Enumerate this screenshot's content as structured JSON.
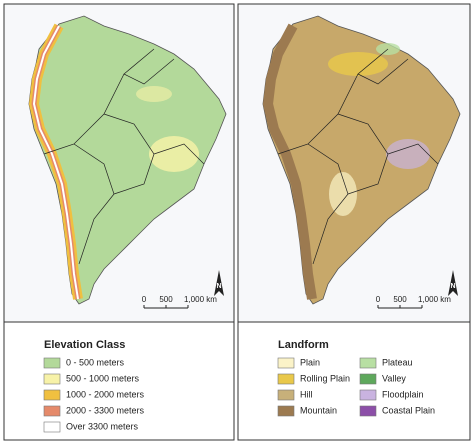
{
  "panels": [
    {
      "scale_bar": {
        "labels": [
          "0",
          "500",
          "1,000 km"
        ]
      },
      "north_arrow": "N",
      "legend": {
        "title": "Elevation Class",
        "items": [
          {
            "label": "0 - 500 meters",
            "color": "#b3d99a"
          },
          {
            "label": "500 - 1000 meters",
            "color": "#f7f2a8"
          },
          {
            "label": "1000 - 2000 meters",
            "color": "#f0c040"
          },
          {
            "label": "2000 - 3300 meters",
            "color": "#e58a6a"
          },
          {
            "label": "Over 3300 meters",
            "color": "#ffffff"
          }
        ]
      }
    },
    {
      "scale_bar": {
        "labels": [
          "0",
          "500",
          "1,000 km"
        ]
      },
      "north_arrow": "N",
      "legend": {
        "title": "Landform",
        "items": [
          {
            "label": "Plain",
            "color": "#fbf3c8"
          },
          {
            "label": "Rolling Plain",
            "color": "#e9c84a"
          },
          {
            "label": "Hill",
            "color": "#c7b07a"
          },
          {
            "label": "Mountain",
            "color": "#9c7a50"
          },
          {
            "label": "Plateau",
            "color": "#b8dfa3"
          },
          {
            "label": "Valley",
            "color": "#5ea85c"
          },
          {
            "label": "Floodplain",
            "color": "#c9b3e0"
          },
          {
            "label": "Coastal Plain",
            "color": "#8c4fa8"
          }
        ]
      }
    }
  ]
}
